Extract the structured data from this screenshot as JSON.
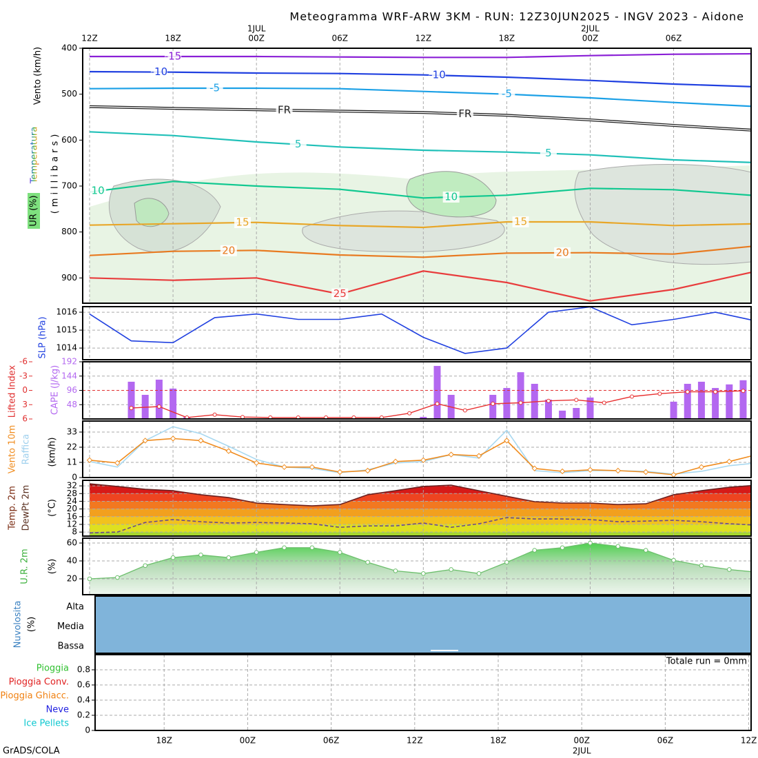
{
  "title": "Meteogramma WRF-ARW 3KM - RUN: 12Z30JUN2025 - INGV 2023 - Aidone",
  "credit": "GrADS/COLA",
  "top_axis": {
    "xlim": [
      0,
      48
    ],
    "xticks": [
      {
        "value": 0,
        "label": "12Z"
      },
      {
        "value": 6,
        "label": "18Z"
      },
      {
        "value": 12,
        "label": "00Z"
      },
      {
        "value": 18,
        "label": "06Z"
      },
      {
        "value": 24,
        "label": "12Z"
      },
      {
        "value": 30,
        "label": "18Z"
      },
      {
        "value": 36,
        "label": "00Z"
      },
      {
        "value": 42,
        "label": "06Z"
      }
    ],
    "dates": [
      {
        "value": 12,
        "label": "1JUL"
      },
      {
        "value": 36,
        "label": "2JUL"
      }
    ]
  },
  "bottom_axis": {
    "xlim": [
      0,
      48
    ],
    "xticks": [
      {
        "value": 6,
        "label": "18Z"
      },
      {
        "value": 12,
        "label": "00Z"
      },
      {
        "value": 18,
        "label": "06Z"
      },
      {
        "value": 24,
        "label": "12Z"
      },
      {
        "value": 30,
        "label": "18Z"
      },
      {
        "value": 36,
        "label": "00Z"
      },
      {
        "value": 42,
        "label": "06Z"
      },
      {
        "value": 48,
        "label": "12Z"
      }
    ],
    "dates": [
      {
        "value": 36,
        "label": "2JUL"
      }
    ]
  },
  "chart_data": [
    {
      "type": "contour",
      "ylabel": "Vento (km/h)",
      "ylabel2": "Temperatura",
      "ylabel3": "UR (%)",
      "ylabel4": "(millibars)",
      "ylim": [
        955,
        400
      ],
      "yticks": [
        400,
        500,
        600,
        700,
        800,
        900
      ],
      "x": [
        0,
        6,
        12,
        18,
        24,
        30,
        36,
        42,
        48
      ],
      "series": [
        {
          "name": "-15",
          "color": "#8a1fd6",
          "values": [
            418,
            418,
            418,
            419,
            420,
            420,
            416,
            413,
            412
          ]
        },
        {
          "name": "-10",
          "color": "#1f3fe0",
          "values": [
            451,
            452,
            454,
            455,
            458,
            463,
            470,
            478,
            484
          ]
        },
        {
          "name": "-5",
          "color": "#1ba0e6",
          "values": [
            488,
            487,
            487,
            488,
            494,
            500,
            508,
            518,
            527
          ]
        },
        {
          "name": "FR",
          "color": "#222222",
          "double": true,
          "values": [
            527,
            531,
            534,
            537,
            540,
            546,
            556,
            568,
            579
          ]
        },
        {
          "name": "5",
          "color": "#20c0b8",
          "values": [
            582,
            590,
            604,
            615,
            622,
            626,
            632,
            643,
            649
          ]
        },
        {
          "name": "10",
          "color": "#10c890",
          "values": [
            713,
            690,
            700,
            707,
            726,
            720,
            705,
            708,
            721
          ]
        },
        {
          "name": "15",
          "color": "#e8a628",
          "values": [
            785,
            782,
            779,
            786,
            790,
            778,
            778,
            786,
            782
          ]
        },
        {
          "name": "20",
          "color": "#e87a20",
          "values": [
            851,
            842,
            840,
            850,
            855,
            846,
            845,
            848,
            830
          ]
        },
        {
          "name": "25",
          "color": "#e83c3c",
          "values": [
            900,
            905,
            900,
            935,
            885,
            910,
            950,
            925,
            885
          ]
        }
      ]
    },
    {
      "type": "line",
      "ylabel": "SLP (hPa)",
      "ylim": [
        1013.35,
        1016.31
      ],
      "yticks": [
        1014,
        1015,
        1016
      ],
      "x": [
        0,
        3,
        6,
        9,
        12,
        15,
        18,
        21,
        24,
        27,
        30,
        33,
        36,
        39,
        42,
        45,
        48
      ],
      "series": [
        {
          "color": "#2040e0",
          "values": [
            1015.9,
            1014.4,
            1014.3,
            1015.7,
            1015.9,
            1015.6,
            1015.6,
            1015.9,
            1014.6,
            1013.7,
            1014.0,
            1016.0,
            1016.3,
            1015.3,
            1015.6,
            1016.0,
            1015.5
          ]
        }
      ]
    },
    {
      "type": "bar_line",
      "ylabel": "CAPE (J/kg)",
      "y2label": "Lifted Index",
      "ylim": [
        0,
        192
      ],
      "yticks": [
        48,
        96,
        144,
        192
      ],
      "y2lim": [
        6,
        -6
      ],
      "y2ticks": [
        -6,
        -3,
        0,
        3,
        6
      ],
      "y2ref": 0,
      "series": [
        {
          "type": "bar",
          "color": "#b368f0",
          "x": [
            3,
            4,
            5,
            6,
            7,
            24,
            25,
            26,
            29,
            30,
            31,
            32,
            33,
            34,
            35,
            36,
            37,
            42,
            43,
            44,
            45,
            46,
            47
          ],
          "values": [
            125,
            81,
            132,
            102,
            7,
            7,
            178,
            81,
            81,
            104,
            157,
            118,
            65,
            28,
            37,
            72,
            2,
            58,
            118,
            125,
            104,
            116,
            130
          ]
        },
        {
          "axis": "y2",
          "color": "#e83030",
          "x": [
            3,
            5,
            7,
            9,
            11,
            13,
            15,
            17,
            19,
            21,
            23,
            25,
            27,
            29,
            31,
            33,
            35,
            37,
            39,
            41,
            43,
            45,
            47
          ],
          "values": [
            3.7,
            3.4,
            5.7,
            5.1,
            5.6,
            5.7,
            5.7,
            5.7,
            5.7,
            5.7,
            4.8,
            2.8,
            4.2,
            2.8,
            2.6,
            2.2,
            2.0,
            2.6,
            1.3,
            0.7,
            0.3,
            0.3,
            0.1
          ]
        }
      ]
    },
    {
      "type": "line",
      "ylabel": "Vento 10m",
      "ylabel2": "Raffica",
      "ylabel3": "(km/h)",
      "ylim": [
        0,
        41
      ],
      "yticks": [
        0,
        11,
        22,
        33
      ],
      "x": [
        0,
        2,
        4,
        6,
        8,
        10,
        12,
        14,
        16,
        18,
        20,
        22,
        24,
        26,
        28,
        30,
        32,
        34,
        36,
        38,
        40,
        42,
        44,
        46,
        48
      ],
      "series": [
        {
          "color": "#a8d8f0",
          "values": [
            11.6,
            7.6,
            26.8,
            36.9,
            31.8,
            22.7,
            13.1,
            7.6,
            6.6,
            3.5,
            5.6,
            10.6,
            11.6,
            16.7,
            14.1,
            34.3,
            5,
            3.5,
            5,
            5,
            4.5,
            2.5,
            4.5,
            8.6,
            10.6
          ]
        },
        {
          "color": "#f08c1e",
          "markers": true,
          "values": [
            12.6,
            10.6,
            26.8,
            28.3,
            26.8,
            19.2,
            10.6,
            7.6,
            7.6,
            4,
            5,
            11.6,
            12.6,
            16.7,
            15.7,
            26.8,
            6.6,
            4.5,
            5.6,
            5,
            4,
            2,
            7.6,
            11.6,
            16.7
          ]
        }
      ]
    },
    {
      "type": "temp",
      "ylabel": "Temp. 2m",
      "ylabel2": "DewPt 2m",
      "ylabel3": "(°C)",
      "ylim": [
        5.9,
        34.9
      ],
      "yticks": [
        8,
        12,
        16,
        20,
        24,
        28,
        32
      ],
      "band_colors": [
        "#a6d62e",
        "#dfe020",
        "#f2c21e",
        "#f2a01e",
        "#f27820",
        "#ee4420",
        "#d61a18",
        "#a01010"
      ],
      "x": [
        0,
        2,
        4,
        6,
        8,
        10,
        12,
        14,
        16,
        18,
        20,
        22,
        24,
        26,
        28,
        30,
        32,
        34,
        36,
        38,
        40,
        42,
        44,
        46,
        48
      ],
      "series": [
        {
          "color": "#6a2020",
          "values": [
            33.1,
            31.7,
            30.2,
            29.5,
            27.4,
            25.9,
            23.1,
            22.3,
            21.6,
            22.3,
            27.4,
            29.5,
            31.7,
            32.4,
            29.5,
            26.6,
            23.8,
            23.1,
            23.1,
            22.3,
            22.7,
            27.4,
            29.5,
            31.3,
            32.4
          ]
        },
        {
          "color": "#6a4a8a",
          "dashed": true,
          "values": [
            7.6,
            8,
            13,
            14.5,
            13.4,
            12.7,
            13,
            12.7,
            12.3,
            10.5,
            11.2,
            11.2,
            12.7,
            10.5,
            12.3,
            15.5,
            14.8,
            14.8,
            14.5,
            13.4,
            13.7,
            14.1,
            13.4,
            12.3,
            11.6
          ]
        }
      ]
    },
    {
      "type": "area",
      "ylabel": "U.R. 2m",
      "ylabel2": "(%)",
      "ylim": [
        2.3,
        65.4
      ],
      "yticks": [
        20,
        40,
        60
      ],
      "x": [
        0,
        2,
        4,
        6,
        8,
        10,
        12,
        14,
        16,
        18,
        20,
        22,
        24,
        26,
        28,
        30,
        32,
        34,
        36,
        38,
        40,
        42,
        44,
        46,
        48
      ],
      "series": [
        {
          "color": "#6cbf6c",
          "values": [
            20,
            21.5,
            34.8,
            43.7,
            46.7,
            43.7,
            49.6,
            54.8,
            54.8,
            49.6,
            38.5,
            28.9,
            25.9,
            30.4,
            25.9,
            38.5,
            51.9,
            54.8,
            60,
            56.3,
            51.9,
            40.7,
            34.8,
            30.4,
            27.4
          ]
        }
      ]
    },
    {
      "type": "cloud",
      "ylabel": "Nuvolosita",
      "ylabel2": "(%)",
      "levels": [
        "Alta",
        "Media",
        "Bassa"
      ],
      "color": "#80b4da"
    },
    {
      "type": "precip",
      "ylim": [
        0,
        1
      ],
      "yticks": [
        0,
        0.2,
        0.4,
        0.6,
        0.8
      ],
      "total": "Totale run = 0mm",
      "legend": [
        {
          "name": "Pioggia",
          "color": "#30c030"
        },
        {
          "name": "Pioggia Conv.",
          "color": "#e02020"
        },
        {
          "name": "Pioggia Ghiacc.",
          "color": "#f08010"
        },
        {
          "name": "Neve",
          "color": "#2020e0"
        },
        {
          "name": "Ice Pellets",
          "color": "#10c8d0"
        }
      ]
    }
  ]
}
